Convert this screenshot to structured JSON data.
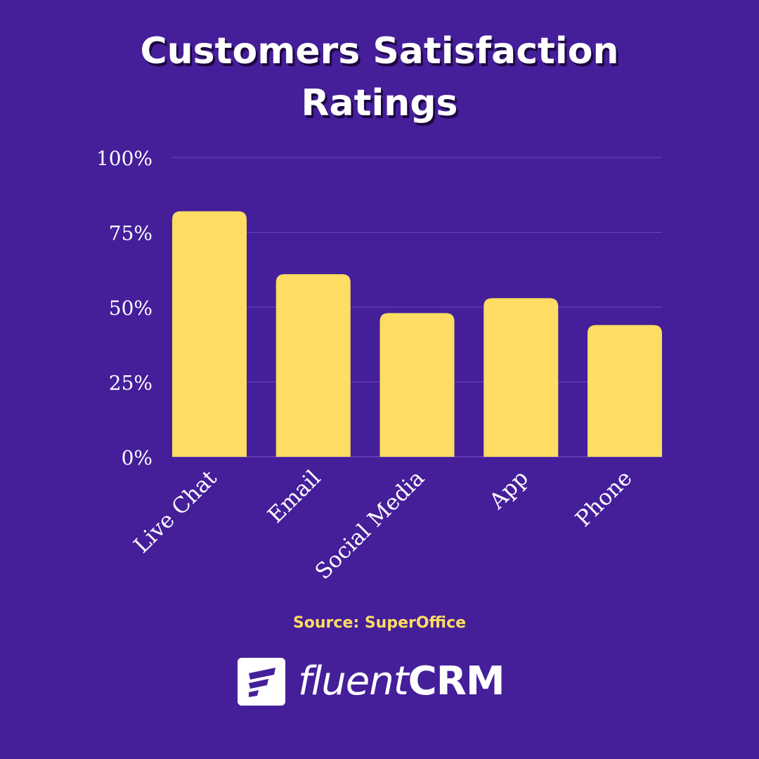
{
  "title": {
    "line1": "Customers Satisfaction",
    "line2": "Ratings"
  },
  "chart_data": {
    "type": "bar",
    "title": "Customers Satisfaction Ratings",
    "categories": [
      "Live Chat",
      "Email",
      "Social Media",
      "App",
      "Phone"
    ],
    "values": [
      82,
      61,
      48,
      53,
      44
    ],
    "unit": "%",
    "xlabel": "",
    "ylabel": "",
    "ylim": [
      0,
      100
    ],
    "yticks": [
      0,
      25,
      50,
      75,
      100
    ],
    "ytick_labels": [
      "0%",
      "25%",
      "50%",
      "75%",
      "100%"
    ],
    "grid": true,
    "legend": "none"
  },
  "colors": {
    "background": "#451e9a",
    "bar": "#ffdc63",
    "grid": "#6a48b8",
    "text": "#ffffff",
    "source": "#ffdc63"
  },
  "source_text": "Source: SuperOffice",
  "brand": {
    "light": "fluent",
    "bold": "CRM",
    "icon": "fluentcrm-logo-icon"
  }
}
